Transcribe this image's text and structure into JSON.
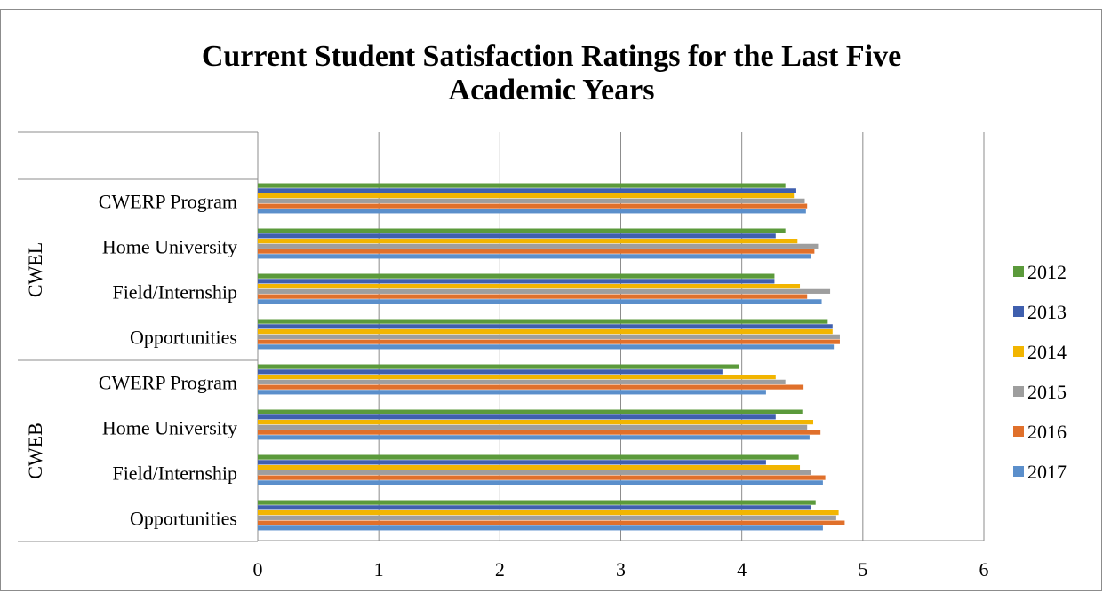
{
  "chart_data": {
    "type": "bar",
    "orientation": "horizontal",
    "title_lines": [
      "Current Student Satisfaction Ratings for the Last Five",
      "Academic Years"
    ],
    "xlim": [
      0,
      6
    ],
    "x_ticks": [
      "0",
      "1",
      "2",
      "3",
      "4",
      "5",
      "6"
    ],
    "grid": "vertical",
    "legend_position": "right",
    "groups": [
      {
        "name": "CWEL",
        "categories": [
          "CWERP Program",
          "Home University",
          "Field/Internship",
          "Opportunities"
        ]
      },
      {
        "name": "CWEB",
        "categories": [
          "CWERP Program",
          "Home University",
          "Field/Internship",
          "Opportunities"
        ]
      }
    ],
    "series": [
      {
        "name": "2012",
        "color": "#5b9a3b",
        "values": [
          [
            4.36,
            4.36,
            4.27,
            4.71
          ],
          [
            3.98,
            4.5,
            4.47,
            4.61
          ]
        ]
      },
      {
        "name": "2013",
        "color": "#3f5fae",
        "values": [
          [
            4.45,
            4.28,
            4.27,
            4.75
          ],
          [
            3.84,
            4.28,
            4.2,
            4.57
          ]
        ]
      },
      {
        "name": "2014",
        "color": "#f2b500",
        "values": [
          [
            4.43,
            4.46,
            4.48,
            4.75
          ],
          [
            4.28,
            4.59,
            4.48,
            4.8
          ]
        ]
      },
      {
        "name": "2015",
        "color": "#9e9e9e",
        "values": [
          [
            4.52,
            4.63,
            4.73,
            4.81
          ],
          [
            4.36,
            4.54,
            4.57,
            4.78
          ]
        ]
      },
      {
        "name": "2016",
        "color": "#e0702b",
        "values": [
          [
            4.54,
            4.6,
            4.54,
            4.81
          ],
          [
            4.51,
            4.65,
            4.69,
            4.85
          ]
        ]
      },
      {
        "name": "2017",
        "color": "#5b8fcb",
        "values": [
          [
            4.53,
            4.57,
            4.66,
            4.76
          ],
          [
            4.2,
            4.56,
            4.67,
            4.67
          ]
        ]
      }
    ]
  }
}
